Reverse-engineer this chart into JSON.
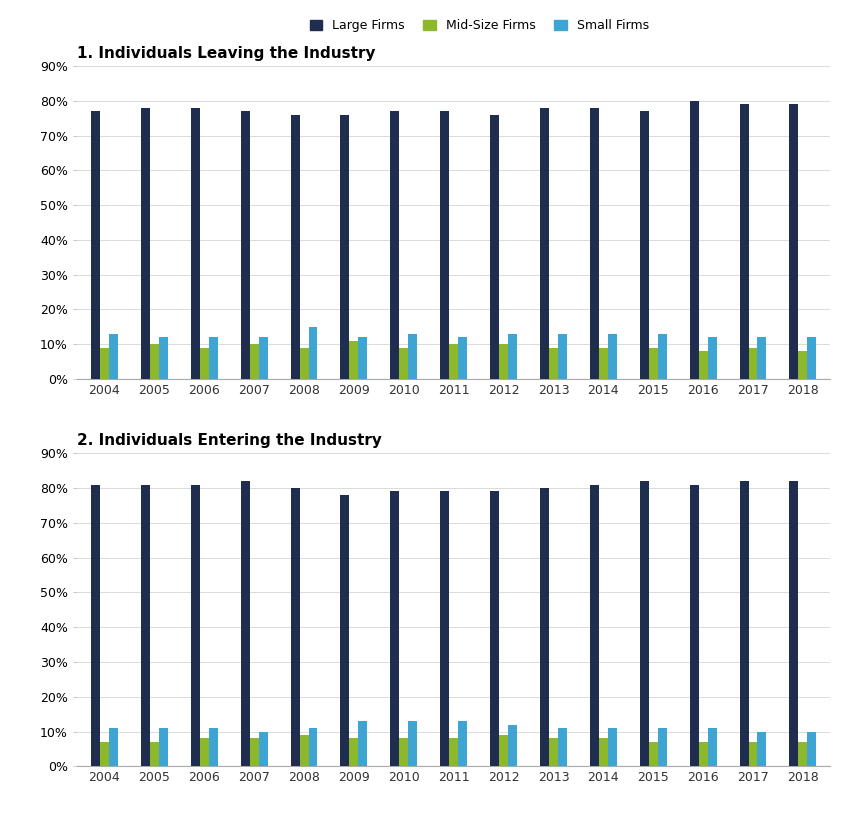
{
  "years": [
    2004,
    2005,
    2006,
    2007,
    2008,
    2009,
    2010,
    2011,
    2012,
    2013,
    2014,
    2015,
    2016,
    2017,
    2018
  ],
  "leaving": {
    "large": [
      77,
      78,
      78,
      77,
      76,
      76,
      77,
      77,
      76,
      78,
      78,
      77,
      80,
      79,
      79
    ],
    "mid": [
      9,
      10,
      9,
      10,
      9,
      11,
      9,
      10,
      10,
      9,
      9,
      9,
      8,
      9,
      8
    ],
    "small": [
      13,
      12,
      12,
      12,
      15,
      12,
      13,
      12,
      13,
      13,
      13,
      13,
      12,
      12,
      12
    ]
  },
  "entering": {
    "large": [
      81,
      81,
      81,
      82,
      80,
      78,
      79,
      79,
      79,
      80,
      81,
      82,
      81,
      82,
      82
    ],
    "mid": [
      7,
      7,
      8,
      8,
      9,
      8,
      8,
      8,
      9,
      8,
      8,
      7,
      7,
      7,
      7
    ],
    "small": [
      11,
      11,
      11,
      10,
      11,
      13,
      13,
      13,
      12,
      11,
      11,
      11,
      11,
      10,
      10
    ]
  },
  "colors": {
    "large": "#1F2D4E",
    "mid": "#8DB82B",
    "small": "#3EA5D3"
  },
  "title1": "1. Individuals Leaving the Industry",
  "title2": "2. Individuals Entering the Industry",
  "legend_labels": [
    "Large Firms",
    "Mid-Size Firms",
    "Small Firms"
  ],
  "yticks": [
    0,
    10,
    20,
    30,
    40,
    50,
    60,
    70,
    80,
    90
  ],
  "background_color": "#ffffff"
}
